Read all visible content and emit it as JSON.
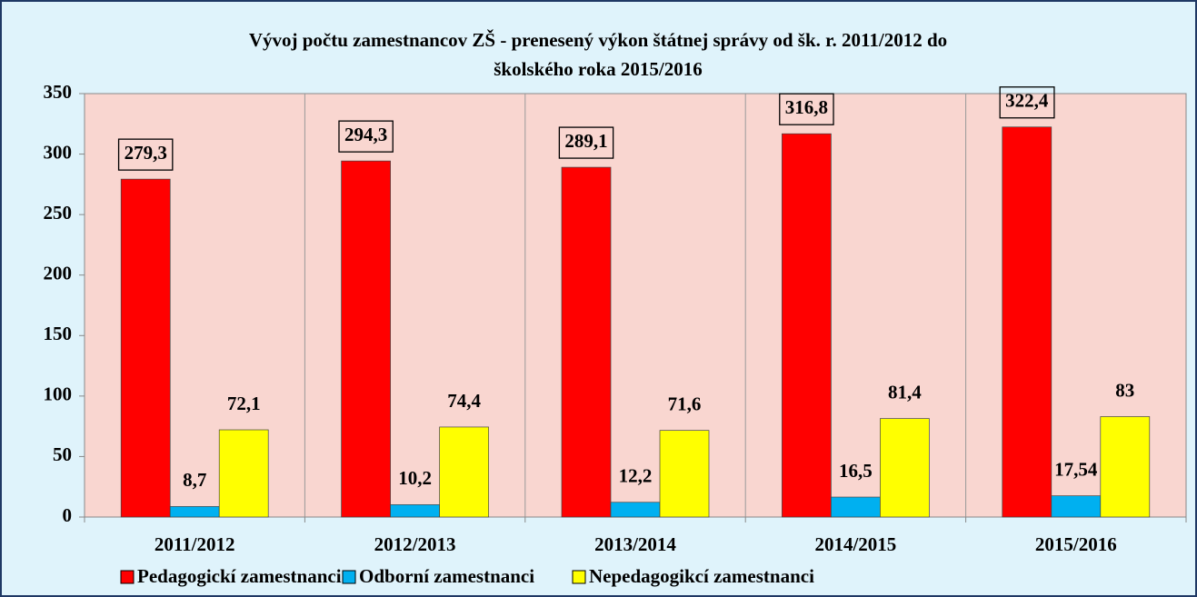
{
  "chart_data": {
    "type": "bar",
    "title": [
      "Vývoj počtu zamestnancov ZŠ - prenesený výkon štátnej správy od šk. r. 2011/2012 do",
      "školského roka 2015/2016"
    ],
    "categories": [
      "2011/2012",
      "2012/2013",
      "2013/2014",
      "2014/2015",
      "2015/2016"
    ],
    "series": [
      {
        "name": "Pedagogickí zamestnanci",
        "color": "#ff0000",
        "values": [
          279.3,
          294.3,
          289.1,
          316.8,
          322.4
        ],
        "value_labels": [
          "279,3",
          "294,3",
          "289,1",
          "316,8",
          "322,4"
        ]
      },
      {
        "name": "Odborní zamestnanci",
        "color": "#00b0f0",
        "values": [
          8.7,
          10.2,
          12.2,
          16.5,
          17.54
        ],
        "value_labels": [
          "8,7",
          "10,2",
          "12,2",
          "16,5",
          "17,54"
        ]
      },
      {
        "name": "Nepedagogikcí zamestnanci",
        "color": "#ffff00",
        "values": [
          72.1,
          74.4,
          71.6,
          81.4,
          83
        ],
        "value_labels": [
          "72,1",
          "74,4",
          "71,6",
          "81,4",
          "83"
        ]
      }
    ],
    "ylim": [
      0,
      350
    ],
    "yticks": [
      0,
      50,
      100,
      150,
      200,
      250,
      300,
      350
    ],
    "legend": "bottom"
  }
}
